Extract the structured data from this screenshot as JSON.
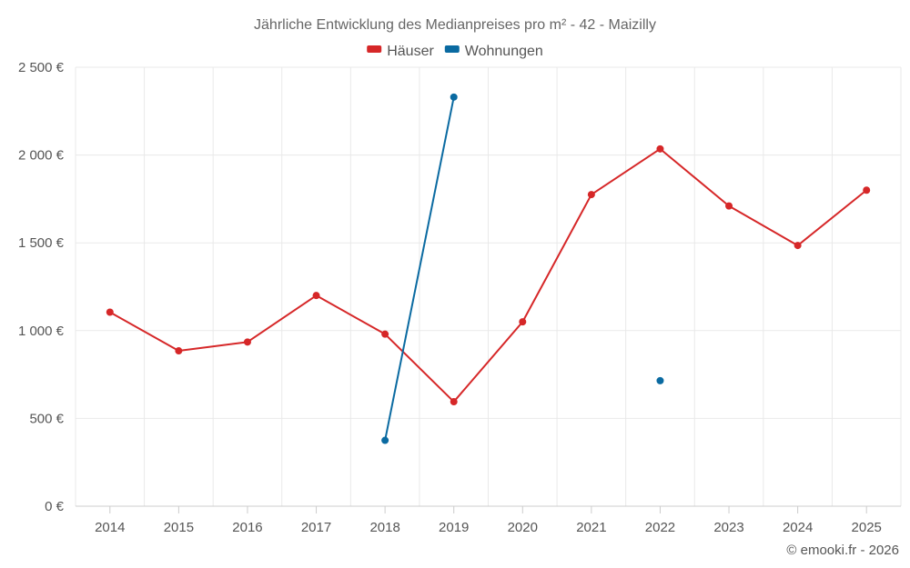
{
  "chart_data": {
    "type": "line",
    "title": "Jährliche Entwicklung des Medianpreises pro m² - 42 - Maizilly",
    "xlabel": "",
    "ylabel": "",
    "categories": [
      "2014",
      "2015",
      "2016",
      "2017",
      "2018",
      "2019",
      "2020",
      "2021",
      "2022",
      "2023",
      "2024",
      "2025"
    ],
    "ylim": [
      0,
      2500
    ],
    "yticks": [
      0,
      500,
      1000,
      1500,
      2000,
      2500
    ],
    "ytick_labels": [
      "0 €",
      "500 €",
      "1 000 €",
      "1 500 €",
      "2 000 €",
      "2 500 €"
    ],
    "legend_position": "top-center",
    "grid": true,
    "series": [
      {
        "name": "Häuser",
        "color": "#d62728",
        "values": [
          1105,
          885,
          935,
          1200,
          980,
          595,
          1050,
          1775,
          2035,
          1710,
          1485,
          1800
        ]
      },
      {
        "name": "Wohnungen",
        "color": "#0a6aa1",
        "values": [
          null,
          null,
          null,
          null,
          375,
          2330,
          null,
          null,
          715,
          null,
          null,
          null
        ]
      }
    ],
    "credit": "© emooki.fr - 2026"
  }
}
